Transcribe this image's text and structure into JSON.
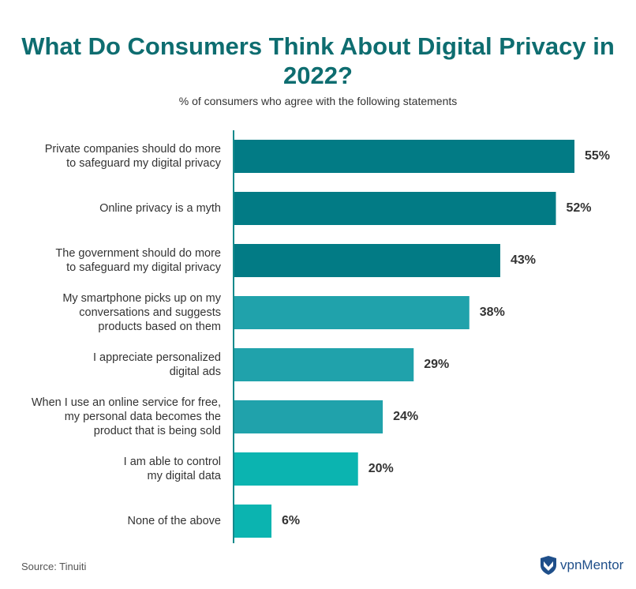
{
  "chart_data": {
    "type": "bar",
    "orientation": "horizontal",
    "title": "What Do Consumers Think About Digital Privacy in 2022?",
    "subtitle": "% of consumers who agree with the following statements",
    "categories": [
      "Private companies should do more\nto safeguard my digital privacy",
      "Online privacy is a myth",
      "The government should do more\nto safeguard my digital privacy",
      "My smartphone picks up on my\nconversations and suggests\nproducts based on them",
      "I appreciate personalized\ndigital ads",
      "When I use an online service for free,\nmy personal data becomes the\nproduct that is being sold",
      "I am able to control\nmy digital data",
      "None of the above"
    ],
    "values": [
      55,
      52,
      43,
      38,
      29,
      24,
      20,
      6
    ],
    "data_labels": [
      "55%",
      "52%",
      "43%",
      "38%",
      "29%",
      "24%",
      "20%",
      "6%"
    ],
    "bar_colors": [
      "#027b85",
      "#027b85",
      "#027b85",
      "#20a2ab",
      "#20a2ab",
      "#20a2ab",
      "#0bb4b0",
      "#0bb4b0"
    ],
    "grid": false
  },
  "source": "Source: Tinuiti",
  "logo": "vpnMentor"
}
